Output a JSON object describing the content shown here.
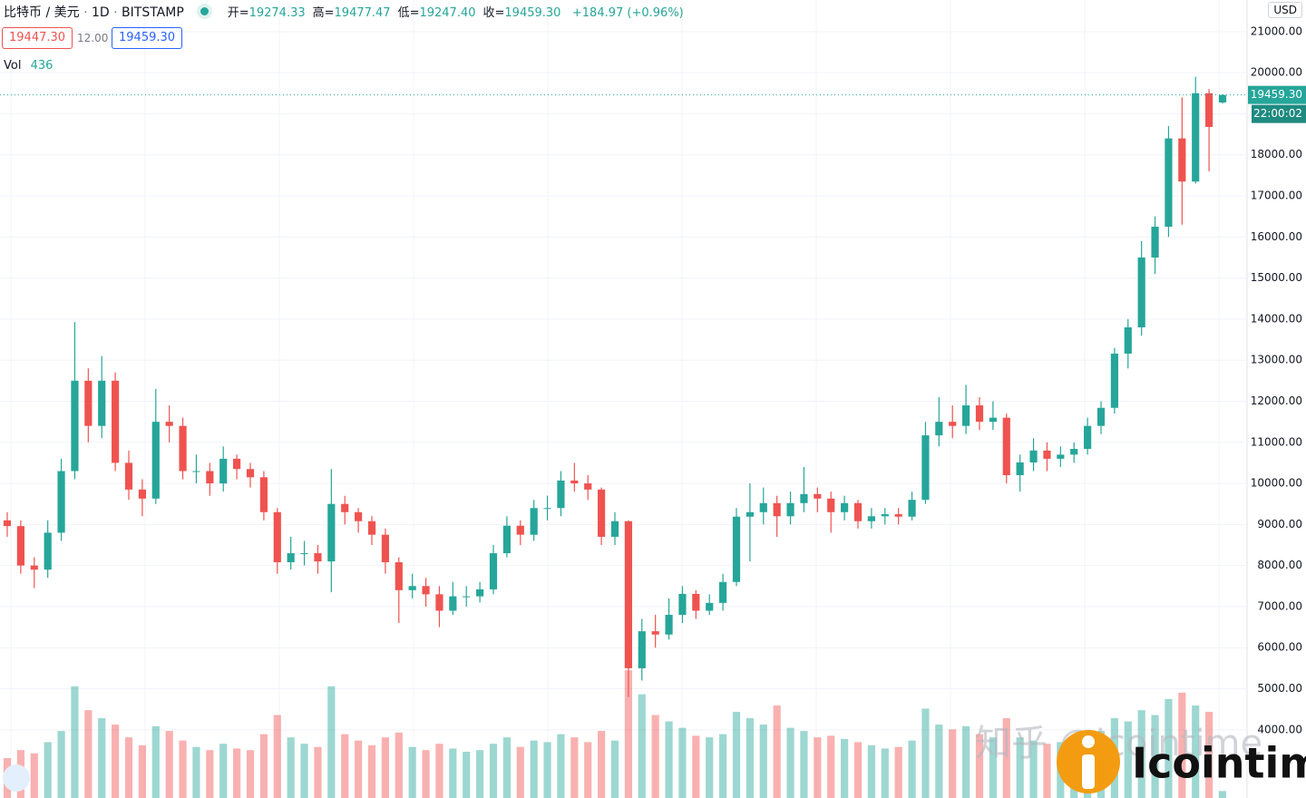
{
  "header": {
    "symbol": "比特币 / 美元",
    "interval": "1D",
    "exchange": "BITSTAMP",
    "ohlc": [
      {
        "label": "开=",
        "value": "19274.33"
      },
      {
        "label": "高=",
        "value": "19477.47"
      },
      {
        "label": "低=",
        "value": "19247.40"
      },
      {
        "label": "收=",
        "value": "19459.30"
      }
    ],
    "change": "+184.97 (+0.96%)",
    "bid": "19447.30",
    "spread": "12.00",
    "ask": "19459.30",
    "volume_label": "Vol"
  },
  "chart_data": {
    "type": "candlestick",
    "up_color": "#26a69a",
    "down_color": "#ef5350",
    "grid": true,
    "currency": "USD",
    "open": [
      9100,
      8960,
      8000,
      7900,
      8800,
      10300,
      12500,
      11400,
      12500,
      10500,
      9850,
      9630,
      11500,
      11400,
      10300,
      10300,
      10000,
      10600,
      10350,
      10150,
      9300,
      8080,
      8300,
      8300,
      8100,
      9500,
      9300,
      9080,
      8750,
      8080,
      7400,
      7500,
      7300,
      6900,
      7250,
      7250,
      7420,
      8300,
      8970,
      8750,
      9400,
      9400,
      10070,
      10000,
      9850,
      8700,
      9080,
      5500,
      6400,
      6320,
      6800,
      7310,
      6900,
      7090,
      7600,
      9190,
      9300,
      9520,
      9200,
      9520,
      9740,
      9630,
      9300,
      9520,
      9080,
      9200,
      9250,
      9190,
      9600,
      11170,
      11500,
      11400,
      11900,
      11500,
      11600,
      10200,
      10510,
      10800,
      10600,
      10700,
      10840,
      11400,
      11840,
      13160,
      13800,
      15500,
      16250,
      18400,
      17350,
      19500,
      19274.33
    ],
    "high": [
      9300,
      9100,
      8200,
      9100,
      10600,
      13930,
      12800,
      13100,
      12700,
      10800,
      10100,
      12300,
      11900,
      11600,
      10700,
      10500,
      10900,
      10700,
      10500,
      10300,
      9400,
      8700,
      8600,
      8500,
      10350,
      9700,
      9400,
      9200,
      8900,
      8200,
      7800,
      7700,
      7500,
      7600,
      7500,
      7600,
      8500,
      9200,
      9100,
      9600,
      9700,
      10300,
      10500,
      10200,
      9900,
      9300,
      9100,
      6700,
      6800,
      7200,
      7500,
      7400,
      7300,
      7800,
      9400,
      10000,
      9900,
      9700,
      9800,
      10400,
      9900,
      9800,
      9700,
      9600,
      9400,
      9400,
      9400,
      9800,
      11500,
      12100,
      11900,
      12400,
      12100,
      12000,
      11700,
      10700,
      11100,
      11000,
      10900,
      11000,
      11600,
      12000,
      13300,
      14000,
      15900,
      16500,
      18700,
      19400,
      19900,
      19600,
      19477.47
    ],
    "low": [
      8700,
      7800,
      7450,
      7700,
      8600,
      10100,
      11000,
      11100,
      10300,
      9600,
      9200,
      9500,
      11000,
      10100,
      10000,
      9700,
      9800,
      10100,
      9900,
      9100,
      7800,
      7900,
      8000,
      7800,
      7350,
      9000,
      8800,
      8500,
      7800,
      6600,
      7200,
      7000,
      6500,
      6800,
      7000,
      7100,
      7300,
      8200,
      8500,
      8600,
      9100,
      9200,
      9800,
      9600,
      8500,
      8500,
      4800,
      5200,
      6000,
      6200,
      6600,
      6700,
      6800,
      6900,
      7500,
      8100,
      9000,
      8700,
      9000,
      9300,
      9300,
      8800,
      9100,
      8900,
      8900,
      9000,
      9000,
      9100,
      9500,
      10900,
      11100,
      11200,
      11300,
      11300,
      10000,
      9800,
      10300,
      10300,
      10400,
      10500,
      10700,
      11200,
      11700,
      12800,
      13600,
      15100,
      16000,
      16300,
      17300,
      17600,
      19247.4
    ],
    "close": [
      8960,
      8000,
      7900,
      8800,
      10300,
      12500,
      11400,
      12500,
      10500,
      9850,
      9630,
      11500,
      11400,
      10300,
      10300,
      10000,
      10600,
      10350,
      10150,
      9300,
      8080,
      8300,
      8300,
      8100,
      9500,
      9300,
      9080,
      8750,
      8080,
      7400,
      7500,
      7300,
      6900,
      7250,
      7250,
      7420,
      8300,
      8970,
      8750,
      9400,
      9400,
      10070,
      10000,
      9850,
      8700,
      9080,
      5500,
      6400,
      6320,
      6800,
      7310,
      6900,
      7090,
      7600,
      9190,
      9300,
      9520,
      9200,
      9520,
      9740,
      9630,
      9300,
      9520,
      9080,
      9200,
      9250,
      9190,
      9600,
      11170,
      11500,
      11400,
      11900,
      11500,
      11600,
      10200,
      10510,
      10800,
      10600,
      10700,
      10840,
      11400,
      11840,
      13160,
      13800,
      15500,
      16250,
      18400,
      17350,
      19500,
      18680,
      19459.3
    ],
    "volume": [
      2500,
      3000,
      2800,
      3500,
      4200,
      7000,
      5500,
      5000,
      4600,
      3800,
      3300,
      4500,
      4200,
      3600,
      3200,
      3000,
      3400,
      3100,
      3000,
      4000,
      5200,
      3800,
      3400,
      3200,
      7000,
      4000,
      3600,
      3300,
      3800,
      4100,
      3200,
      3000,
      3400,
      3100,
      2900,
      3000,
      3400,
      3800,
      3200,
      3600,
      3500,
      4000,
      3800,
      3500,
      4200,
      3600,
      8000,
      6500,
      5200,
      4800,
      4400,
      3900,
      3800,
      4000,
      5400,
      5000,
      4600,
      5800,
      4400,
      4200,
      3800,
      3900,
      3700,
      3500,
      3300,
      3100,
      3200,
      3600,
      5600,
      4600,
      4300,
      4500,
      4000,
      3800,
      5000,
      3800,
      3600,
      3400,
      3500,
      3600,
      3900,
      4200,
      5000,
      4800,
      5500,
      5200,
      6200,
      6600,
      5800,
      5400,
      436
    ],
    "ylim": [
      2340,
      21770
    ],
    "y2lim": [
      0,
      50000
    ],
    "yticks": [
      {
        "value": 4000,
        "label": "4000.00"
      },
      {
        "value": 5000,
        "label": "5000.00"
      },
      {
        "value": 6000,
        "label": "6000.00"
      },
      {
        "value": 7000,
        "label": "7000.00"
      },
      {
        "value": 8000,
        "label": "8000.00"
      },
      {
        "value": 9000,
        "label": "9000.00"
      },
      {
        "value": 10000,
        "label": "10000.00"
      },
      {
        "value": 11000,
        "label": "11000.00"
      },
      {
        "value": 12000,
        "label": "12000.00"
      },
      {
        "value": 13000,
        "label": "13000.00"
      },
      {
        "value": 14000,
        "label": "14000.00"
      },
      {
        "value": 15000,
        "label": "15000.00"
      },
      {
        "value": 16000,
        "label": "16000.00"
      },
      {
        "value": 17000,
        "label": "17000.00"
      },
      {
        "value": 18000,
        "label": "18000.00"
      },
      {
        "value": 19000,
        "label": "19000.00"
      },
      {
        "value": 20000,
        "label": "20000.00"
      },
      {
        "value": 21000,
        "label": "21000.00"
      }
    ],
    "price_tag": {
      "value": 19459.3,
      "label": "19459.30"
    },
    "countdown": "22:00:02"
  },
  "watermark": {
    "site": "知乎 @icointime",
    "brand": "Icointime"
  }
}
